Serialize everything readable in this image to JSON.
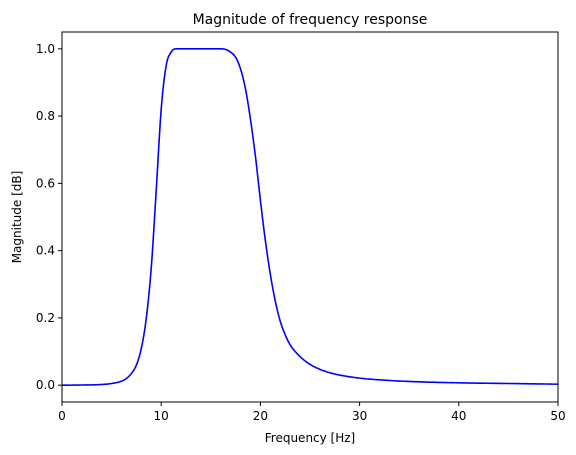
{
  "chart_data": {
    "type": "line",
    "title": "Magnitude of frequency response",
    "xlabel": "Frequency [Hz]",
    "ylabel": "Magnitude [dB]",
    "xlim": [
      0,
      50
    ],
    "ylim": [
      -0.05,
      1.05
    ],
    "xticks": [
      0,
      10,
      20,
      30,
      40,
      50
    ],
    "xtick_labels": [
      "0",
      "10",
      "20",
      "30",
      "40",
      "50"
    ],
    "yticks": [
      0.0,
      0.2,
      0.4,
      0.6,
      0.8,
      1.0
    ],
    "ytick_labels": [
      "0.0",
      "0.2",
      "0.4",
      "0.6",
      "0.8",
      "1.0"
    ],
    "grid": false,
    "series": [
      {
        "color": "#0000ff",
        "x": [
          0,
          2,
          4,
          5,
          6,
          6.5,
          7,
          7.5,
          8,
          8.5,
          9,
          9.5,
          10,
          10.5,
          11,
          11.5,
          12,
          13,
          14,
          15,
          16,
          16.5,
          17,
          17.5,
          18,
          18.5,
          19,
          19.5,
          20,
          20.5,
          21,
          21.5,
          22,
          22.5,
          23,
          24,
          25,
          26,
          27,
          28,
          30,
          33,
          36,
          40,
          45,
          50
        ],
        "y": [
          0.0,
          0.0005,
          0.002,
          0.005,
          0.012,
          0.02,
          0.035,
          0.06,
          0.11,
          0.2,
          0.35,
          0.58,
          0.82,
          0.95,
          0.99,
          1.0,
          1.0,
          1.0,
          1.0,
          1.0,
          1.0,
          0.998,
          0.99,
          0.975,
          0.94,
          0.88,
          0.79,
          0.68,
          0.55,
          0.43,
          0.33,
          0.25,
          0.19,
          0.15,
          0.12,
          0.085,
          0.062,
          0.047,
          0.037,
          0.03,
          0.021,
          0.014,
          0.01,
          0.007,
          0.005,
          0.003
        ]
      }
    ]
  }
}
